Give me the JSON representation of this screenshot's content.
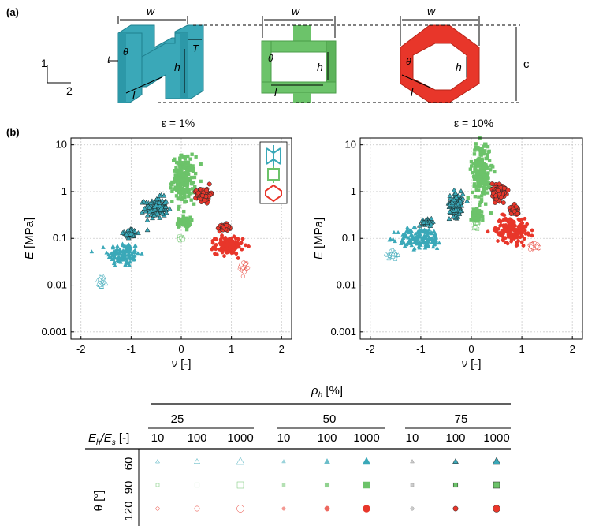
{
  "panels": {
    "a": "(a)",
    "b": "(b)"
  },
  "geometry": {
    "dim_w": "w",
    "dim_t": "t",
    "dim_T": "T",
    "dim_theta": "θ",
    "dim_h": "h",
    "dim_l": "l",
    "dim_c": "c",
    "axis_1": "1",
    "axis_2": "2",
    "colors": {
      "reentrant": "#3aa8b8",
      "square": "#6cc36a",
      "hexagon": "#e8362a"
    }
  },
  "chart_data": [
    {
      "type": "scatter",
      "title": "ε = 1%",
      "xlabel": "ν [-]",
      "ylabel": "E [MPa]",
      "xlim": [
        -2.2,
        2.2
      ],
      "ylim": [
        0.0007,
        14
      ],
      "yscale": "log",
      "xticks": [
        "-2",
        "-1",
        "0",
        "1",
        "2"
      ],
      "yticks": [
        "0.001",
        "0.01",
        "0.1",
        "1",
        "10"
      ],
      "grid": true,
      "legend": "top-right",
      "series": [
        {
          "shape": "triangle",
          "color": "#3aa8b8",
          "clusters": [
            {
              "x": -1.6,
              "y": 0.012,
              "rx": 0.08,
              "ry": 0.15,
              "style": "faint",
              "n": 40
            },
            {
              "x": -1.15,
              "y": 0.045,
              "rx": 0.35,
              "ry": 0.3,
              "style": "mid",
              "n": 120
            },
            {
              "x": -0.5,
              "y": 0.45,
              "rx": 0.25,
              "ry": 0.25,
              "style": "dark",
              "n": 120
            },
            {
              "x": -1.0,
              "y": 0.13,
              "rx": 0.15,
              "ry": 0.1,
              "style": "dark",
              "n": 40
            }
          ]
        },
        {
          "shape": "square",
          "color": "#6cc36a",
          "clusters": [
            {
              "x": 0.0,
              "y": 0.1,
              "rx": 0.05,
              "ry": 0.05,
              "style": "faint",
              "n": 20
            },
            {
              "x": 0.05,
              "y": 0.22,
              "rx": 0.15,
              "ry": 0.12,
              "style": "mid",
              "n": 60
            },
            {
              "x": 0.05,
              "y": 1.8,
              "rx": 0.25,
              "ry": 0.55,
              "style": "mid",
              "n": 200
            }
          ]
        },
        {
          "shape": "circle",
          "color": "#e8362a",
          "clusters": [
            {
              "x": 1.25,
              "y": 0.025,
              "rx": 0.08,
              "ry": 0.12,
              "style": "faint",
              "n": 30
            },
            {
              "x": 0.95,
              "y": 0.07,
              "rx": 0.3,
              "ry": 0.2,
              "style": "mid",
              "n": 150
            },
            {
              "x": 0.85,
              "y": 0.17,
              "rx": 0.12,
              "ry": 0.08,
              "style": "dark",
              "n": 40
            },
            {
              "x": 0.45,
              "y": 0.85,
              "rx": 0.15,
              "ry": 0.15,
              "style": "dark",
              "n": 120
            }
          ]
        }
      ]
    },
    {
      "type": "scatter",
      "title": "ε = 10%",
      "xlabel": "ν [-]",
      "ylabel": "E [MPa]",
      "xlim": [
        -2.2,
        2.2
      ],
      "ylim": [
        0.0007,
        14
      ],
      "yscale": "log",
      "xticks": [
        "-2",
        "-1",
        "0",
        "1",
        "2"
      ],
      "yticks": [
        "0.001",
        "0.01",
        "0.1",
        "1",
        "10"
      ],
      "grid": true,
      "series": [
        {
          "shape": "triangle",
          "color": "#3aa8b8",
          "clusters": [
            {
              "x": -1.55,
              "y": 0.045,
              "rx": 0.1,
              "ry": 0.12,
              "style": "faint",
              "n": 40
            },
            {
              "x": -1.0,
              "y": 0.1,
              "rx": 0.5,
              "ry": 0.25,
              "style": "mid",
              "n": 150
            },
            {
              "x": -0.3,
              "y": 0.55,
              "rx": 0.15,
              "ry": 0.3,
              "style": "dark",
              "n": 120
            },
            {
              "x": -0.85,
              "y": 0.22,
              "rx": 0.12,
              "ry": 0.07,
              "style": "dark",
              "n": 40
            }
          ]
        },
        {
          "shape": "square",
          "color": "#6cc36a",
          "clusters": [
            {
              "x": 0.1,
              "y": 0.22,
              "rx": 0.06,
              "ry": 0.12,
              "style": "faint",
              "n": 25
            },
            {
              "x": 0.1,
              "y": 0.3,
              "rx": 0.12,
              "ry": 0.15,
              "style": "mid",
              "n": 60
            },
            {
              "x": 0.2,
              "y": 2.8,
              "rx": 0.2,
              "ry": 0.7,
              "style": "mid",
              "n": 200
            }
          ]
        },
        {
          "shape": "circle",
          "color": "#e8362a",
          "clusters": [
            {
              "x": 1.25,
              "y": 0.07,
              "rx": 0.12,
              "ry": 0.08,
              "style": "faint",
              "n": 40
            },
            {
              "x": 0.8,
              "y": 0.15,
              "rx": 0.35,
              "ry": 0.3,
              "style": "mid",
              "n": 150
            },
            {
              "x": 0.85,
              "y": 0.4,
              "rx": 0.1,
              "ry": 0.1,
              "style": "dark",
              "n": 40
            },
            {
              "x": 0.55,
              "y": 1.0,
              "rx": 0.15,
              "ry": 0.2,
              "style": "dark",
              "n": 120
            }
          ]
        }
      ]
    }
  ],
  "key_table": {
    "rho_label": "ρ",
    "rho_sub": "h",
    "rho_unit": " [%]",
    "rho_values": [
      "25",
      "50",
      "75"
    ],
    "eh_label": "E",
    "eh_sub1": "h",
    "eh_mid": "/E",
    "eh_sub2": "s",
    "eh_unit": " [-]",
    "eh_values": [
      "10",
      "100",
      "1000",
      "10",
      "100",
      "1000",
      "10",
      "100",
      "1000"
    ],
    "theta_label": "θ [°]",
    "theta_values": [
      "60",
      "90",
      "120"
    ]
  }
}
